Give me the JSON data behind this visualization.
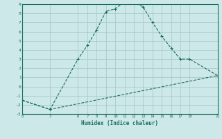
{
  "xlabel": "Humidex (Indice chaleur)",
  "ylabel": "",
  "bg_color": "#cce8e8",
  "grid_color": "#aacccc",
  "line_color": "#1a6b5a",
  "xticks": [
    0,
    3,
    6,
    7,
    8,
    9,
    10,
    11,
    12,
    13,
    14,
    15,
    16,
    17,
    18,
    21
  ],
  "yticks": [
    -3,
    -2,
    -1,
    0,
    1,
    2,
    3,
    4,
    5,
    6,
    7,
    8,
    9
  ],
  "xlim": [
    0,
    21
  ],
  "ylim": [
    -3,
    9
  ],
  "line1_x": [
    0,
    3,
    6,
    7,
    8,
    9,
    10,
    11,
    12,
    13,
    14,
    15,
    16,
    17,
    18,
    21
  ],
  "line1_y": [
    -1.5,
    -2.5,
    3.0,
    4.5,
    6.2,
    8.2,
    8.5,
    9.3,
    9.2,
    8.7,
    7.0,
    5.5,
    4.2,
    3.0,
    3.0,
    1.2
  ],
  "line2_x": [
    0,
    3,
    21
  ],
  "line2_y": [
    -1.5,
    -2.5,
    1.2
  ]
}
